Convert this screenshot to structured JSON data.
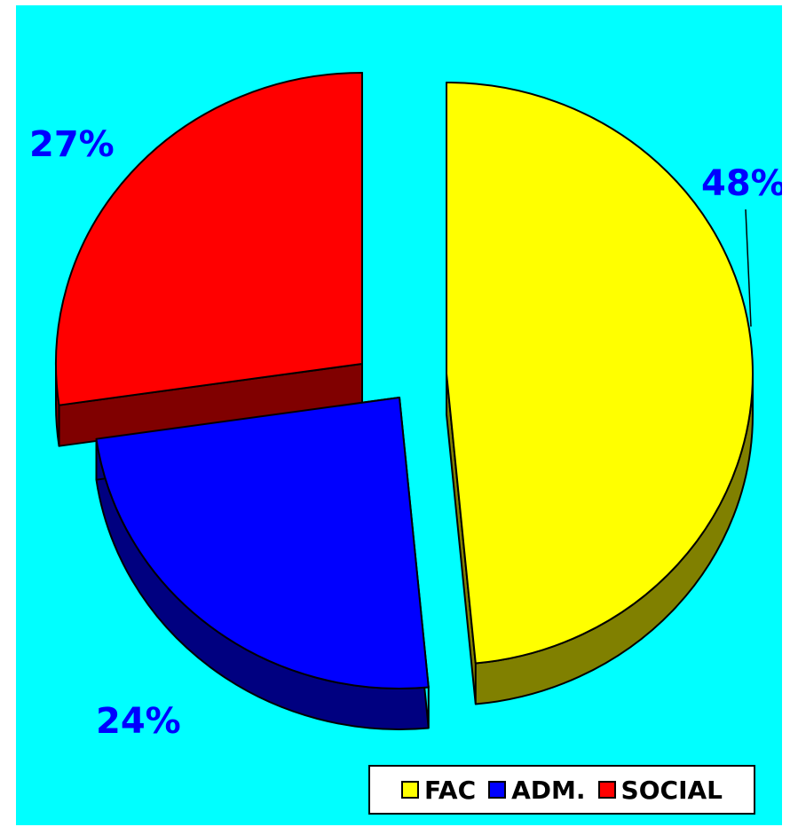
{
  "chart_data": {
    "type": "pie",
    "title": "",
    "three_d": true,
    "exploded": true,
    "legend_position": "bottom-right",
    "slices": [
      {
        "name": "FAC",
        "value": 48,
        "label": "48%",
        "color": "#FFFF00",
        "side_color": "#808000"
      },
      {
        "name": "ADM.",
        "value": 24,
        "label": "24%",
        "color": "#0000FF",
        "side_color": "#000080"
      },
      {
        "name": "SOCIAL",
        "value": 27,
        "label": "27%",
        "color": "#FF0000",
        "side_color": "#800000"
      }
    ],
    "label_color": "#0000FF",
    "background_color": "#00FFFF"
  }
}
